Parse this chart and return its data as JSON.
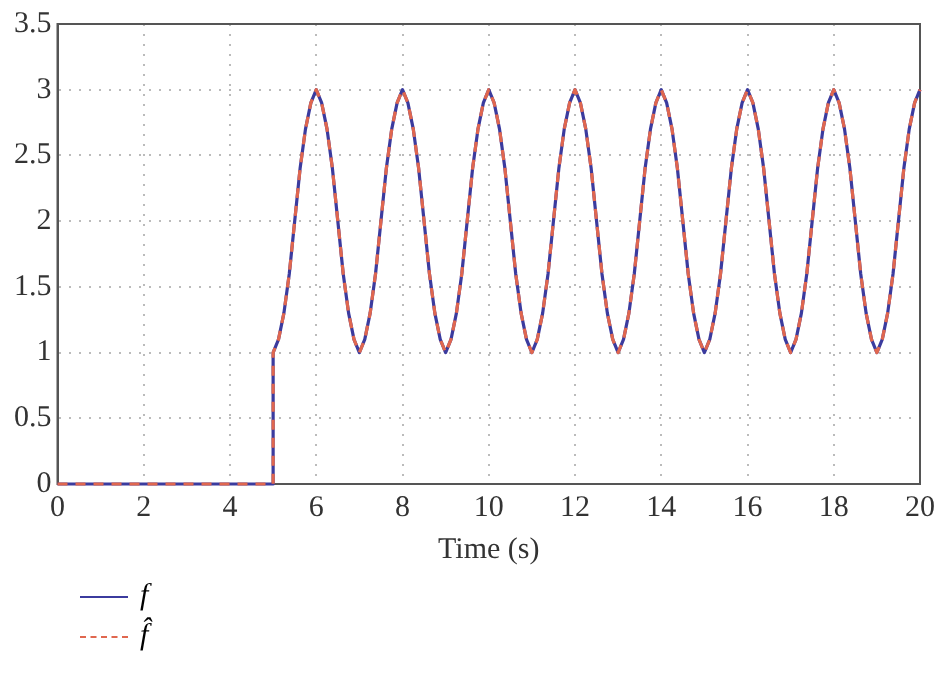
{
  "chart_data": {
    "type": "line",
    "xlabel": "Time (s)",
    "xlim": [
      0,
      20
    ],
    "xticks": [
      0,
      2,
      4,
      6,
      8,
      10,
      12,
      14,
      16,
      18,
      20
    ],
    "ylim": [
      0,
      3.5
    ],
    "yticks": [
      0,
      0.5,
      1,
      1.5,
      2,
      2.5,
      3,
      3.5
    ],
    "grid": true,
    "legend": "bottom left",
    "marker": "none",
    "x": [
      0,
      5,
      5,
      5.125,
      5.25,
      5.375,
      5.5,
      5.625,
      5.75,
      5.875,
      6,
      6.125,
      6.25,
      6.375,
      6.5,
      6.625,
      6.75,
      6.875,
      7,
      7.125,
      7.25,
      7.375,
      7.5,
      7.625,
      7.75,
      7.875,
      8,
      8.125,
      8.25,
      8.375,
      8.5,
      8.625,
      8.75,
      8.875,
      9,
      9.125,
      9.25,
      9.375,
      9.5,
      9.625,
      9.75,
      9.875,
      10,
      10.125,
      10.25,
      10.375,
      10.5,
      10.625,
      10.75,
      10.875,
      11,
      11.125,
      11.25,
      11.375,
      11.5,
      11.625,
      11.75,
      11.875,
      12,
      12.125,
      12.25,
      12.375,
      12.5,
      12.625,
      12.75,
      12.875,
      13,
      13.125,
      13.25,
      13.375,
      13.5,
      13.625,
      13.75,
      13.875,
      14,
      14.125,
      14.25,
      14.375,
      14.5,
      14.625,
      14.75,
      14.875,
      15,
      15.125,
      15.25,
      15.375,
      15.5,
      15.625,
      15.75,
      15.875,
      16,
      16.125,
      16.25,
      16.375,
      16.5,
      16.625,
      16.75,
      16.875,
      17,
      17.125,
      17.25,
      17.375,
      17.5,
      17.625,
      17.75,
      17.875,
      18,
      18.125,
      18.25,
      18.375,
      18.5,
      18.625,
      18.75,
      18.875,
      19,
      19.125,
      19.25,
      19.375,
      19.5,
      19.625,
      19.75,
      19.875,
      20
    ],
    "series": [
      {
        "name": "f",
        "color": "#3b3b9e",
        "line_style": "solid",
        "values": [
          0,
          0,
          1,
          1.1,
          1.3,
          1.6,
          2,
          2.4,
          2.7,
          2.9,
          3,
          2.9,
          2.7,
          2.4,
          2,
          1.6,
          1.3,
          1.1,
          1,
          1.1,
          1.3,
          1.6,
          2,
          2.4,
          2.7,
          2.9,
          3,
          2.9,
          2.7,
          2.4,
          2,
          1.6,
          1.3,
          1.1,
          1,
          1.1,
          1.3,
          1.6,
          2,
          2.4,
          2.7,
          2.9,
          3,
          2.9,
          2.7,
          2.4,
          2,
          1.6,
          1.3,
          1.1,
          1,
          1.1,
          1.3,
          1.6,
          2,
          2.4,
          2.7,
          2.9,
          3,
          2.9,
          2.7,
          2.4,
          2,
          1.6,
          1.3,
          1.1,
          1,
          1.1,
          1.3,
          1.6,
          2,
          2.4,
          2.7,
          2.9,
          3,
          2.9,
          2.7,
          2.4,
          2,
          1.6,
          1.3,
          1.1,
          1,
          1.1,
          1.3,
          1.6,
          2,
          2.4,
          2.7,
          2.9,
          3,
          2.9,
          2.7,
          2.4,
          2,
          1.6,
          1.3,
          1.1,
          1,
          1.1,
          1.3,
          1.6,
          2,
          2.4,
          2.7,
          2.9,
          3,
          2.9,
          2.7,
          2.4,
          2,
          1.6,
          1.3,
          1.1,
          1,
          1.1,
          1.3,
          1.6,
          2,
          2.4,
          2.7,
          2.9,
          3
        ]
      },
      {
        "name": "f̂",
        "color": "#e0674f",
        "line_style": "dashed",
        "values": [
          0,
          0,
          1,
          1.1,
          1.3,
          1.6,
          2,
          2.4,
          2.7,
          2.9,
          3,
          2.9,
          2.7,
          2.4,
          2,
          1.6,
          1.3,
          1.1,
          1,
          1.1,
          1.3,
          1.6,
          2,
          2.4,
          2.7,
          2.9,
          3,
          2.9,
          2.7,
          2.4,
          2,
          1.6,
          1.3,
          1.1,
          1,
          1.1,
          1.3,
          1.6,
          2,
          2.4,
          2.7,
          2.9,
          3,
          2.9,
          2.7,
          2.4,
          2,
          1.6,
          1.3,
          1.1,
          1,
          1.1,
          1.3,
          1.6,
          2,
          2.4,
          2.7,
          2.9,
          3,
          2.9,
          2.7,
          2.4,
          2,
          1.6,
          1.3,
          1.1,
          1,
          1.1,
          1.3,
          1.6,
          2,
          2.4,
          2.7,
          2.9,
          3,
          2.9,
          2.7,
          2.4,
          2,
          1.6,
          1.3,
          1.1,
          1,
          1.1,
          1.3,
          1.6,
          2,
          2.4,
          2.7,
          2.9,
          3,
          2.9,
          2.7,
          2.4,
          2,
          1.6,
          1.3,
          1.1,
          1,
          1.1,
          1.3,
          1.6,
          2,
          2.4,
          2.7,
          2.9,
          3,
          2.9,
          2.7,
          2.4,
          2,
          1.6,
          1.3,
          1.1,
          1,
          1.1,
          1.3,
          1.6,
          2,
          2.4,
          2.7,
          2.9,
          3
        ]
      }
    ]
  }
}
